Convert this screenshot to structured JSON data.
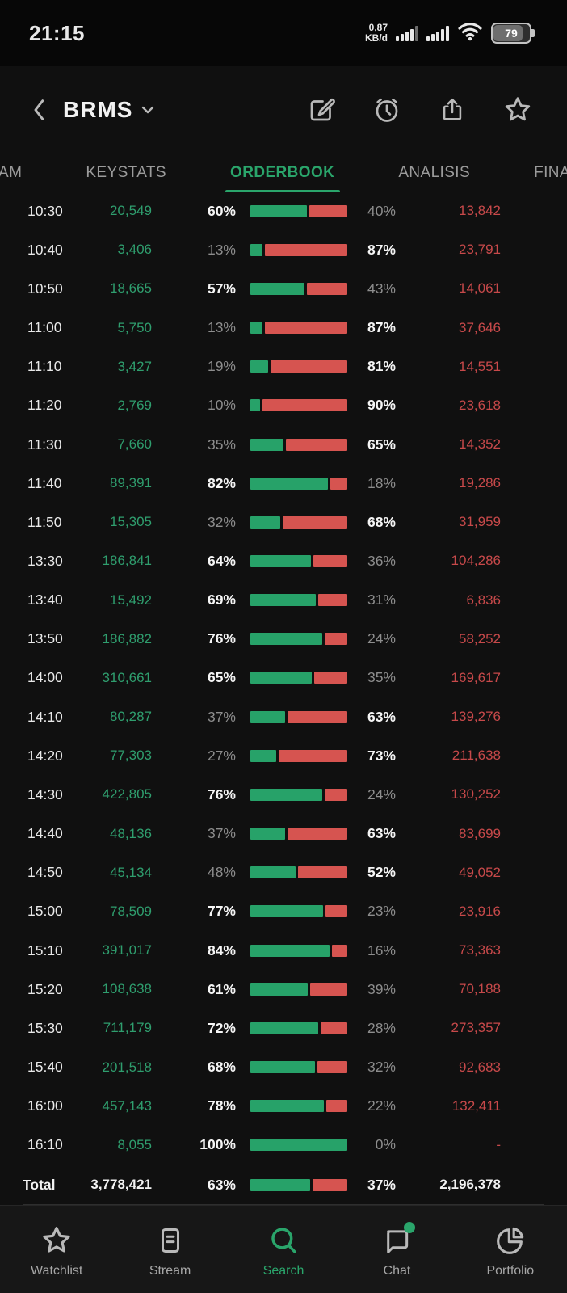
{
  "colors": {
    "accent_green": "#2aa56b",
    "buy_text_green": "#2f9e6e",
    "bar_green": "#27a269",
    "sell_text_red": "#c7494a",
    "bar_red": "#d65450"
  },
  "status_bar": {
    "time": "21:15",
    "net_speed_value": "0,87",
    "net_speed_unit": "KB/d",
    "battery_percent": "79"
  },
  "header": {
    "title": "BRMS",
    "icons": [
      "edit-icon",
      "alarm-icon",
      "share-icon",
      "star-icon"
    ]
  },
  "tabs": [
    {
      "label": "AM",
      "active": false
    },
    {
      "label": "KEYSTATS",
      "active": false
    },
    {
      "label": "ORDERBOOK",
      "active": true
    },
    {
      "label": "ANALISIS",
      "active": false
    },
    {
      "label": "FINA",
      "active": false
    }
  ],
  "orderbook": {
    "rows": [
      {
        "time": "10:30",
        "buy_vol": "20,549",
        "buy_pct": 60,
        "sell_pct": 40,
        "sell_vol": "13,842"
      },
      {
        "time": "10:40",
        "buy_vol": "3,406",
        "buy_pct": 13,
        "sell_pct": 87,
        "sell_vol": "23,791"
      },
      {
        "time": "10:50",
        "buy_vol": "18,665",
        "buy_pct": 57,
        "sell_pct": 43,
        "sell_vol": "14,061"
      },
      {
        "time": "11:00",
        "buy_vol": "5,750",
        "buy_pct": 13,
        "sell_pct": 87,
        "sell_vol": "37,646"
      },
      {
        "time": "11:10",
        "buy_vol": "3,427",
        "buy_pct": 19,
        "sell_pct": 81,
        "sell_vol": "14,551"
      },
      {
        "time": "11:20",
        "buy_vol": "2,769",
        "buy_pct": 10,
        "sell_pct": 90,
        "sell_vol": "23,618"
      },
      {
        "time": "11:30",
        "buy_vol": "7,660",
        "buy_pct": 35,
        "sell_pct": 65,
        "sell_vol": "14,352"
      },
      {
        "time": "11:40",
        "buy_vol": "89,391",
        "buy_pct": 82,
        "sell_pct": 18,
        "sell_vol": "19,286"
      },
      {
        "time": "11:50",
        "buy_vol": "15,305",
        "buy_pct": 32,
        "sell_pct": 68,
        "sell_vol": "31,959"
      },
      {
        "time": "13:30",
        "buy_vol": "186,841",
        "buy_pct": 64,
        "sell_pct": 36,
        "sell_vol": "104,286"
      },
      {
        "time": "13:40",
        "buy_vol": "15,492",
        "buy_pct": 69,
        "sell_pct": 31,
        "sell_vol": "6,836"
      },
      {
        "time": "13:50",
        "buy_vol": "186,882",
        "buy_pct": 76,
        "sell_pct": 24,
        "sell_vol": "58,252"
      },
      {
        "time": "14:00",
        "buy_vol": "310,661",
        "buy_pct": 65,
        "sell_pct": 35,
        "sell_vol": "169,617"
      },
      {
        "time": "14:10",
        "buy_vol": "80,287",
        "buy_pct": 37,
        "sell_pct": 63,
        "sell_vol": "139,276"
      },
      {
        "time": "14:20",
        "buy_vol": "77,303",
        "buy_pct": 27,
        "sell_pct": 73,
        "sell_vol": "211,638"
      },
      {
        "time": "14:30",
        "buy_vol": "422,805",
        "buy_pct": 76,
        "sell_pct": 24,
        "sell_vol": "130,252"
      },
      {
        "time": "14:40",
        "buy_vol": "48,136",
        "buy_pct": 37,
        "sell_pct": 63,
        "sell_vol": "83,699"
      },
      {
        "time": "14:50",
        "buy_vol": "45,134",
        "buy_pct": 48,
        "sell_pct": 52,
        "sell_vol": "49,052"
      },
      {
        "time": "15:00",
        "buy_vol": "78,509",
        "buy_pct": 77,
        "sell_pct": 23,
        "sell_vol": "23,916"
      },
      {
        "time": "15:10",
        "buy_vol": "391,017",
        "buy_pct": 84,
        "sell_pct": 16,
        "sell_vol": "73,363"
      },
      {
        "time": "15:20",
        "buy_vol": "108,638",
        "buy_pct": 61,
        "sell_pct": 39,
        "sell_vol": "70,188"
      },
      {
        "time": "15:30",
        "buy_vol": "711,179",
        "buy_pct": 72,
        "sell_pct": 28,
        "sell_vol": "273,357"
      },
      {
        "time": "15:40",
        "buy_vol": "201,518",
        "buy_pct": 68,
        "sell_pct": 32,
        "sell_vol": "92,683"
      },
      {
        "time": "16:00",
        "buy_vol": "457,143",
        "buy_pct": 78,
        "sell_pct": 22,
        "sell_vol": "132,411"
      },
      {
        "time": "16:10",
        "buy_vol": "8,055",
        "buy_pct": 100,
        "sell_pct": 0,
        "sell_vol": "-"
      }
    ],
    "total": {
      "label": "Total",
      "buy_vol": "3,778,421",
      "buy_pct": 63,
      "sell_pct": 37,
      "sell_vol": "2,196,378"
    }
  },
  "bottom_nav": [
    {
      "label": "Watchlist",
      "icon": "star-icon",
      "active": false,
      "badge": false
    },
    {
      "label": "Stream",
      "icon": "stream-icon",
      "active": false,
      "badge": false
    },
    {
      "label": "Search",
      "icon": "search-icon",
      "active": true,
      "badge": false
    },
    {
      "label": "Chat",
      "icon": "chat-icon",
      "active": false,
      "badge": true
    },
    {
      "label": "Portfolio",
      "icon": "pie-chart-icon",
      "active": false,
      "badge": false
    }
  ]
}
